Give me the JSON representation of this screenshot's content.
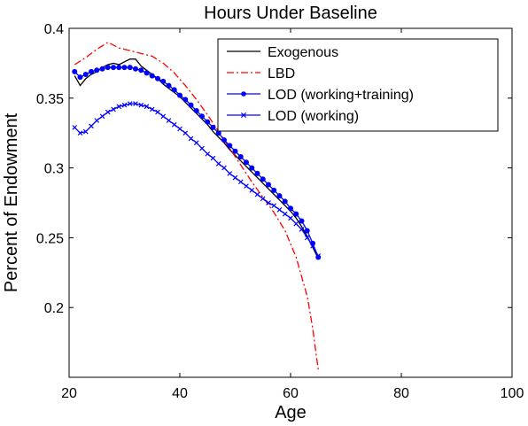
{
  "chart_data": {
    "type": "line",
    "title": "Hours Under Baseline",
    "xlabel": "Age",
    "ylabel": "Percent of Endowment",
    "xlim": [
      20,
      100
    ],
    "ylim": [
      0.15,
      0.4
    ],
    "xticks": [
      "20",
      "40",
      "60",
      "80",
      "100"
    ],
    "yticks": [
      "0.2",
      "0.25",
      "0.3",
      "0.35",
      "0.4"
    ],
    "xtick_values": [
      20,
      40,
      60,
      80,
      100
    ],
    "ytick_values": [
      0.2,
      0.25,
      0.3,
      0.35,
      0.4
    ],
    "grid": false,
    "legend_position": "top-right",
    "series": [
      {
        "name": "Exogenous",
        "color": "#000000",
        "style": "solid",
        "marker": "none",
        "x": [
          21,
          22,
          23,
          24,
          25,
          26,
          27,
          28,
          29,
          30,
          31,
          32,
          33,
          34,
          35,
          36,
          37,
          38,
          39,
          40,
          41,
          42,
          43,
          44,
          45,
          46,
          47,
          48,
          49,
          50,
          51,
          52,
          53,
          54,
          55,
          56,
          57,
          58,
          59,
          60,
          61,
          62,
          63,
          64,
          65
        ],
        "y": [
          0.366,
          0.359,
          0.364,
          0.367,
          0.369,
          0.372,
          0.374,
          0.375,
          0.374,
          0.376,
          0.378,
          0.378,
          0.373,
          0.37,
          0.367,
          0.364,
          0.36,
          0.357,
          0.354,
          0.351,
          0.347,
          0.343,
          0.339,
          0.335,
          0.331,
          0.326,
          0.322,
          0.318,
          0.313,
          0.309,
          0.305,
          0.301,
          0.297,
          0.293,
          0.289,
          0.285,
          0.281,
          0.277,
          0.273,
          0.269,
          0.264,
          0.258,
          0.251,
          0.243,
          0.235
        ]
      },
      {
        "name": "LBD",
        "color": "#ff0000",
        "style": "dashdot",
        "marker": "none",
        "x": [
          21,
          23,
          25,
          27,
          29,
          31,
          33,
          35,
          37,
          39,
          41,
          43,
          45,
          47,
          49,
          51,
          53,
          55,
          57,
          59,
          61,
          62,
          63,
          64,
          65
        ],
        "y": [
          0.374,
          0.379,
          0.385,
          0.39,
          0.386,
          0.384,
          0.382,
          0.38,
          0.375,
          0.368,
          0.359,
          0.349,
          0.338,
          0.326,
          0.314,
          0.302,
          0.29,
          0.279,
          0.268,
          0.255,
          0.236,
          0.222,
          0.208,
          0.185,
          0.155
        ]
      },
      {
        "name": "LOD (working+training)",
        "color": "#0000ff",
        "style": "solid",
        "marker": "circle",
        "x": [
          21,
          22,
          23,
          24,
          25,
          26,
          27,
          28,
          29,
          30,
          31,
          32,
          33,
          34,
          35,
          36,
          37,
          38,
          39,
          40,
          41,
          42,
          43,
          44,
          45,
          46,
          47,
          48,
          49,
          50,
          51,
          52,
          53,
          54,
          55,
          56,
          57,
          58,
          59,
          60,
          61,
          62,
          63,
          64,
          65
        ],
        "y": [
          0.369,
          0.365,
          0.367,
          0.369,
          0.37,
          0.371,
          0.372,
          0.372,
          0.372,
          0.372,
          0.372,
          0.371,
          0.37,
          0.368,
          0.366,
          0.364,
          0.362,
          0.359,
          0.356,
          0.352,
          0.349,
          0.345,
          0.341,
          0.337,
          0.333,
          0.329,
          0.325,
          0.32,
          0.316,
          0.312,
          0.308,
          0.304,
          0.3,
          0.296,
          0.292,
          0.288,
          0.284,
          0.28,
          0.276,
          0.271,
          0.267,
          0.262,
          0.255,
          0.246,
          0.236
        ]
      },
      {
        "name": "LOD (working)",
        "color": "#0000ff",
        "style": "solid",
        "marker": "x",
        "x": [
          21,
          22,
          23,
          24,
          25,
          26,
          27,
          28,
          29,
          30,
          31,
          32,
          33,
          34,
          35,
          36,
          37,
          38,
          39,
          40,
          41,
          42,
          43,
          44,
          45,
          46,
          47,
          48,
          49,
          50,
          51,
          52,
          53,
          54,
          55,
          56,
          57,
          58,
          59,
          60,
          61,
          62,
          63,
          64,
          65
        ],
        "y": [
          0.329,
          0.325,
          0.326,
          0.33,
          0.334,
          0.337,
          0.34,
          0.342,
          0.344,
          0.345,
          0.346,
          0.346,
          0.345,
          0.344,
          0.342,
          0.34,
          0.337,
          0.334,
          0.331,
          0.328,
          0.325,
          0.321,
          0.318,
          0.314,
          0.31,
          0.307,
          0.303,
          0.3,
          0.296,
          0.293,
          0.29,
          0.287,
          0.284,
          0.281,
          0.278,
          0.275,
          0.273,
          0.27,
          0.267,
          0.264,
          0.26,
          0.256,
          0.25,
          0.244,
          0.237
        ]
      }
    ]
  }
}
